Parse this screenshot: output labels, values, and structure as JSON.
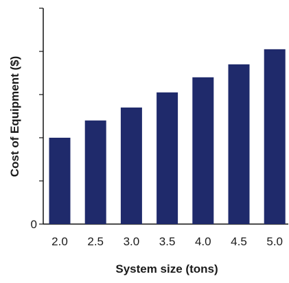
{
  "chart_data": {
    "type": "bar",
    "categories": [
      "2.0",
      "2.5",
      "3.0",
      "3.5",
      "4.0",
      "4.5",
      "5.0"
    ],
    "values": [
      2.0,
      2.4,
      2.7,
      3.05,
      3.4,
      3.7,
      4.05
    ],
    "ylim": [
      0,
      5
    ],
    "yticks": [
      0,
      1,
      2,
      3,
      4,
      5
    ],
    "ytick_labels": [
      "0",
      "",
      "",
      "",
      "",
      ""
    ],
    "xlabel": "System size (tons)",
    "ylabel": "Cost of Equipment ($)",
    "bar_color": "#1f2a6b",
    "grid": false
  }
}
